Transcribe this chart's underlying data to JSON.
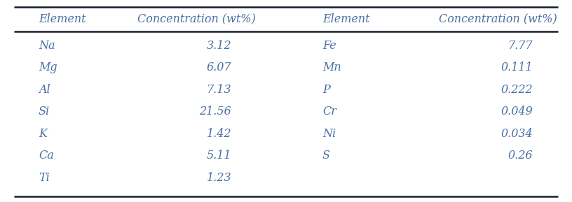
{
  "col_headers": [
    "Element",
    "Concentration (wt%)",
    "Element",
    "Concentration (wt%)"
  ],
  "left_elements": [
    "Na",
    "Mg",
    "Al",
    "Si",
    "K",
    "Ca",
    "Ti"
  ],
  "left_concentrations": [
    "3.12",
    "6.07",
    "7.13",
    "21.56",
    "1.42",
    "5.11",
    "1.23"
  ],
  "right_elements": [
    "Fe",
    "Mn",
    "P",
    "Cr",
    "Ni",
    "S",
    ""
  ],
  "right_concentrations": [
    "7.77",
    "0.111",
    "0.222",
    "0.049",
    "0.034",
    "0.26",
    ""
  ],
  "bg_color": "#ffffff",
  "text_color": "#4a6fa5",
  "line_color": "#1a1a2e",
  "header_fontsize": 11.5,
  "data_fontsize": 11.5,
  "fig_width": 8.16,
  "fig_height": 2.89,
  "dpi": 100
}
